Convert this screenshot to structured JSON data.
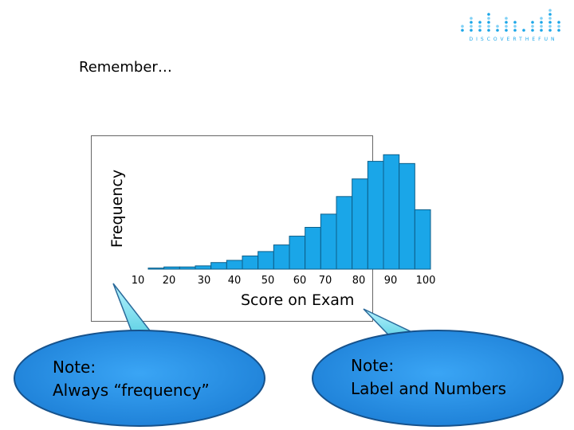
{
  "heading": "Remember…",
  "logo": {
    "brand_text": "DISCOVERTHEFUN"
  },
  "colors": {
    "bar": "#1aa6e8",
    "bar_edge": "#0d5f8a",
    "callout_fill": "#2b93ea",
    "callout_edge": "#16528c",
    "callout_glow": "#58d6c6"
  },
  "chart_data": {
    "type": "bar",
    "xlabel": "Score on Exam",
    "ylabel": "Frequency",
    "tick_labels": [
      "10",
      "20",
      "30",
      "40",
      "50",
      "60",
      "70",
      "80",
      "90",
      "100"
    ],
    "bins": [
      {
        "from": 10,
        "to": 15,
        "value": 0.5
      },
      {
        "from": 15,
        "to": 20,
        "value": 1
      },
      {
        "from": 20,
        "to": 25,
        "value": 1
      },
      {
        "from": 25,
        "to": 30,
        "value": 1.5
      },
      {
        "from": 30,
        "to": 35,
        "value": 3
      },
      {
        "from": 35,
        "to": 40,
        "value": 4
      },
      {
        "from": 40,
        "to": 45,
        "value": 6
      },
      {
        "from": 45,
        "to": 50,
        "value": 8
      },
      {
        "from": 50,
        "to": 55,
        "value": 11
      },
      {
        "from": 55,
        "to": 60,
        "value": 15
      },
      {
        "from": 60,
        "to": 65,
        "value": 19
      },
      {
        "from": 65,
        "to": 70,
        "value": 25
      },
      {
        "from": 70,
        "to": 75,
        "value": 33
      },
      {
        "from": 75,
        "to": 80,
        "value": 41
      },
      {
        "from": 80,
        "to": 85,
        "value": 49
      },
      {
        "from": 85,
        "to": 90,
        "value": 52
      },
      {
        "from": 90,
        "to": 95,
        "value": 48
      },
      {
        "from": 95,
        "to": 100,
        "value": 27
      }
    ],
    "ylim": [
      0,
      55
    ],
    "xlim": [
      10,
      100
    ],
    "grid": false
  },
  "callouts": [
    {
      "line1": "Note:",
      "line2": "Always “frequency”"
    },
    {
      "line1": "Note:",
      "line2": "Label and Numbers"
    }
  ]
}
